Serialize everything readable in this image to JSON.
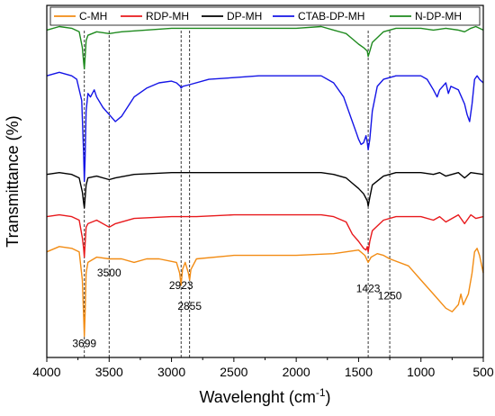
{
  "chart_data": {
    "type": "line",
    "title": "",
    "xlabel_main": "Wavelenght (cm",
    "xlabel_sup": "-1",
    "xlabel_end": ")",
    "ylabel": "Transmittance (%)",
    "x_reversed": true,
    "xlim": [
      4000,
      500
    ],
    "ylim": [
      0,
      100
    ],
    "y_ticks_labeled": false,
    "x_ticks": [
      4000,
      3500,
      3000,
      2500,
      2000,
      1500,
      1000,
      500
    ],
    "x_tick_labels": [
      "4000",
      "3500",
      "3000",
      "2500",
      "2000",
      "1500",
      "1000",
      "500"
    ],
    "legend_position": "top",
    "reference_lines": [
      3699,
      3500,
      2923,
      2855,
      1423,
      1250
    ],
    "annotations": [
      {
        "text": "3500",
        "x": 3500,
        "y": 23
      },
      {
        "text": "2923",
        "x": 2923,
        "y": 19.5
      },
      {
        "text": "2855",
        "x": 2855,
        "y": 13.5
      },
      {
        "text": "1423",
        "x": 1423,
        "y": 18.5
      },
      {
        "text": "1250",
        "x": 1250,
        "y": 16.5
      },
      {
        "text": "3699",
        "x": 3699,
        "y": 3
      }
    ],
    "series": [
      {
        "name": "C-MH",
        "color": "#f28c14",
        "points": [
          [
            4000,
            30
          ],
          [
            3900,
            31.5
          ],
          [
            3800,
            31
          ],
          [
            3740,
            30
          ],
          [
            3715,
            22
          ],
          [
            3705,
            12
          ],
          [
            3699,
            6
          ],
          [
            3693,
            12
          ],
          [
            3685,
            24
          ],
          [
            3670,
            27
          ],
          [
            3600,
            28.5
          ],
          [
            3500,
            28
          ],
          [
            3400,
            28
          ],
          [
            3300,
            27
          ],
          [
            3200,
            28
          ],
          [
            3100,
            28
          ],
          [
            2960,
            27
          ],
          [
            2935,
            24
          ],
          [
            2923,
            20.5
          ],
          [
            2912,
            25
          ],
          [
            2890,
            27
          ],
          [
            2865,
            24
          ],
          [
            2855,
            22
          ],
          [
            2845,
            25
          ],
          [
            2800,
            28
          ],
          [
            2500,
            29
          ],
          [
            2200,
            29
          ],
          [
            2000,
            29
          ],
          [
            1700,
            29.5
          ],
          [
            1600,
            30
          ],
          [
            1500,
            30.5
          ],
          [
            1450,
            29
          ],
          [
            1423,
            27
          ],
          [
            1400,
            28.5
          ],
          [
            1350,
            29.5
          ],
          [
            1300,
            29
          ],
          [
            1250,
            28
          ],
          [
            1100,
            26
          ],
          [
            1000,
            22
          ],
          [
            900,
            18
          ],
          [
            800,
            14
          ],
          [
            750,
            13
          ],
          [
            700,
            15
          ],
          [
            680,
            18
          ],
          [
            660,
            15
          ],
          [
            620,
            18
          ],
          [
            590,
            24
          ],
          [
            570,
            30
          ],
          [
            550,
            31
          ],
          [
            530,
            29
          ],
          [
            500,
            24
          ]
        ]
      },
      {
        "name": "RDP-MH",
        "color": "#e8191c",
        "points": [
          [
            4000,
            40
          ],
          [
            3900,
            40.5
          ],
          [
            3800,
            40
          ],
          [
            3740,
            39
          ],
          [
            3715,
            34
          ],
          [
            3705,
            31
          ],
          [
            3699,
            28.5
          ],
          [
            3693,
            32
          ],
          [
            3685,
            37
          ],
          [
            3670,
            38
          ],
          [
            3600,
            39
          ],
          [
            3500,
            37
          ],
          [
            3450,
            38
          ],
          [
            3300,
            39.5
          ],
          [
            3000,
            40
          ],
          [
            2800,
            40
          ],
          [
            2500,
            40.5
          ],
          [
            2000,
            40.5
          ],
          [
            1800,
            40.5
          ],
          [
            1700,
            40
          ],
          [
            1600,
            38.5
          ],
          [
            1550,
            35
          ],
          [
            1500,
            33
          ],
          [
            1460,
            31
          ],
          [
            1440,
            30.5
          ],
          [
            1430,
            31.5
          ],
          [
            1423,
            30
          ],
          [
            1410,
            33
          ],
          [
            1390,
            36
          ],
          [
            1300,
            39
          ],
          [
            1200,
            40
          ],
          [
            1000,
            40
          ],
          [
            900,
            39
          ],
          [
            850,
            40
          ],
          [
            800,
            38.5
          ],
          [
            700,
            40.5
          ],
          [
            650,
            38
          ],
          [
            600,
            40.5
          ],
          [
            560,
            39.5
          ],
          [
            500,
            40
          ]
        ]
      },
      {
        "name": "DP-MH",
        "color": "#000000",
        "points": [
          [
            4000,
            52
          ],
          [
            3900,
            52.5
          ],
          [
            3800,
            52
          ],
          [
            3740,
            51
          ],
          [
            3715,
            47
          ],
          [
            3705,
            44
          ],
          [
            3699,
            42.5
          ],
          [
            3693,
            45
          ],
          [
            3685,
            49
          ],
          [
            3670,
            51
          ],
          [
            3600,
            51.5
          ],
          [
            3500,
            50.5
          ],
          [
            3450,
            51
          ],
          [
            3300,
            52
          ],
          [
            3000,
            52.5
          ],
          [
            2500,
            52.5
          ],
          [
            2000,
            52.5
          ],
          [
            1800,
            52.5
          ],
          [
            1700,
            52
          ],
          [
            1600,
            51
          ],
          [
            1550,
            49.5
          ],
          [
            1500,
            48
          ],
          [
            1460,
            46.5
          ],
          [
            1430,
            44.5
          ],
          [
            1423,
            43
          ],
          [
            1410,
            45.5
          ],
          [
            1390,
            49
          ],
          [
            1300,
            51.5
          ],
          [
            1200,
            52.5
          ],
          [
            1000,
            52.5
          ],
          [
            900,
            52
          ],
          [
            850,
            52.5
          ],
          [
            800,
            51.5
          ],
          [
            700,
            52.5
          ],
          [
            650,
            51
          ],
          [
            600,
            52.5
          ],
          [
            500,
            52
          ]
        ]
      },
      {
        "name": "CTAB-DP-MH",
        "color": "#1414e6",
        "points": [
          [
            4000,
            80
          ],
          [
            3900,
            81
          ],
          [
            3800,
            80
          ],
          [
            3760,
            79
          ],
          [
            3720,
            73
          ],
          [
            3705,
            58
          ],
          [
            3699,
            50
          ],
          [
            3693,
            56
          ],
          [
            3685,
            70
          ],
          [
            3670,
            75
          ],
          [
            3650,
            74
          ],
          [
            3620,
            76
          ],
          [
            3600,
            74
          ],
          [
            3550,
            71
          ],
          [
            3500,
            69
          ],
          [
            3450,
            67
          ],
          [
            3400,
            68.5
          ],
          [
            3300,
            74
          ],
          [
            3200,
            76.5
          ],
          [
            3100,
            78
          ],
          [
            3000,
            78.5
          ],
          [
            2960,
            78
          ],
          [
            2930,
            77
          ],
          [
            2923,
            76.5
          ],
          [
            2910,
            77
          ],
          [
            2855,
            77.5
          ],
          [
            2700,
            79
          ],
          [
            2500,
            79.5
          ],
          [
            2300,
            80
          ],
          [
            2100,
            80
          ],
          [
            2000,
            80
          ],
          [
            1800,
            80
          ],
          [
            1700,
            78
          ],
          [
            1620,
            74
          ],
          [
            1560,
            68
          ],
          [
            1520,
            64
          ],
          [
            1500,
            62
          ],
          [
            1480,
            60.5
          ],
          [
            1460,
            61
          ],
          [
            1440,
            63
          ],
          [
            1430,
            61
          ],
          [
            1423,
            59
          ],
          [
            1410,
            62
          ],
          [
            1390,
            70
          ],
          [
            1350,
            77
          ],
          [
            1300,
            79
          ],
          [
            1200,
            80
          ],
          [
            1000,
            80
          ],
          [
            950,
            79
          ],
          [
            900,
            76
          ],
          [
            870,
            74
          ],
          [
            850,
            76
          ],
          [
            800,
            78
          ],
          [
            780,
            75
          ],
          [
            760,
            77
          ],
          [
            700,
            76
          ],
          [
            650,
            72
          ],
          [
            630,
            69
          ],
          [
            610,
            67
          ],
          [
            590,
            72
          ],
          [
            570,
            79
          ],
          [
            550,
            80
          ],
          [
            530,
            79
          ],
          [
            500,
            78
          ]
        ]
      },
      {
        "name": "N-DP-MH",
        "color": "#1e8a1e",
        "points": [
          [
            4000,
            93
          ],
          [
            3900,
            94
          ],
          [
            3800,
            93.5
          ],
          [
            3740,
            92.5
          ],
          [
            3715,
            88
          ],
          [
            3705,
            84
          ],
          [
            3699,
            82
          ],
          [
            3693,
            85
          ],
          [
            3685,
            90
          ],
          [
            3670,
            91.5
          ],
          [
            3600,
            92.5
          ],
          [
            3500,
            92
          ],
          [
            3400,
            92.5
          ],
          [
            3000,
            93.5
          ],
          [
            2500,
            93.5
          ],
          [
            2000,
            93.5
          ],
          [
            1800,
            94
          ],
          [
            1700,
            93
          ],
          [
            1600,
            92
          ],
          [
            1550,
            90.5
          ],
          [
            1500,
            89
          ],
          [
            1460,
            88
          ],
          [
            1430,
            87
          ],
          [
            1423,
            85.5
          ],
          [
            1410,
            87
          ],
          [
            1390,
            89.5
          ],
          [
            1300,
            92.5
          ],
          [
            1200,
            93.5
          ],
          [
            1000,
            93.5
          ],
          [
            900,
            93
          ],
          [
            800,
            93.5
          ],
          [
            700,
            93
          ],
          [
            650,
            92.5
          ],
          [
            600,
            93.5
          ],
          [
            560,
            94
          ],
          [
            500,
            93
          ]
        ]
      }
    ]
  }
}
